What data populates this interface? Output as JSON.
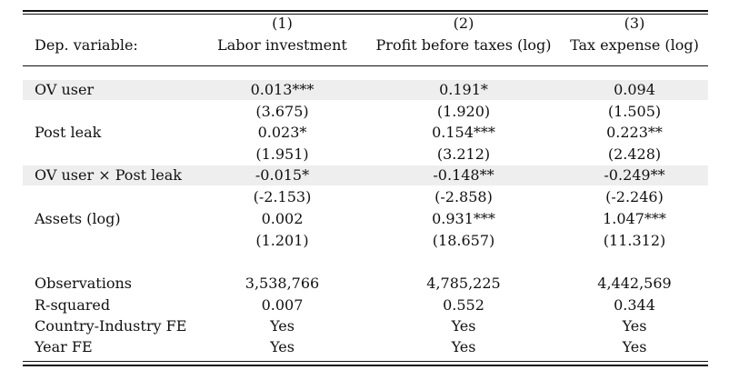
{
  "header": {
    "col_numbers": [
      "(1)",
      "(2)",
      "(3)"
    ],
    "dep_label": "Dep. variable:",
    "dep_vars": [
      "Labor investment",
      "Profit before taxes (log)",
      "Tax expense (log)"
    ]
  },
  "rows": [
    {
      "label": "OV user",
      "values": [
        "0.013***",
        "0.191*",
        "0.094"
      ]
    },
    {
      "label": "",
      "values": [
        "(3.675)",
        "(1.920)",
        "(1.505)"
      ]
    },
    {
      "label": "Post leak",
      "values": [
        "0.023*",
        "0.154***",
        "0.223**"
      ]
    },
    {
      "label": "",
      "values": [
        "(1.951)",
        "(3.212)",
        "(2.428)"
      ]
    },
    {
      "label": "OV user × Post leak",
      "values": [
        "-0.015*",
        "-0.148**",
        "-0.249**"
      ]
    },
    {
      "label": "",
      "values": [
        "(-2.153)",
        "(-2.858)",
        "(-2.246)"
      ]
    },
    {
      "label": "Assets (log)",
      "values": [
        "0.002",
        "0.931***",
        "1.047***"
      ]
    },
    {
      "label": "",
      "values": [
        "(1.201)",
        "(18.657)",
        "(11.312)"
      ]
    }
  ],
  "stats": [
    {
      "label": "Observations",
      "values": [
        "3,538,766",
        "4,785,225",
        "4,442,569"
      ]
    },
    {
      "label": "R-squared",
      "values": [
        "0.007",
        "0.552",
        "0.344"
      ]
    },
    {
      "label": "Country-Industry FE",
      "values": [
        "Yes",
        "Yes",
        "Yes"
      ]
    },
    {
      "label": "Year FE",
      "values": [
        "Yes",
        "Yes",
        "Yes"
      ]
    }
  ],
  "colors": {
    "rule": "#111111",
    "shade": "#eeeeee",
    "text": "#111111"
  }
}
